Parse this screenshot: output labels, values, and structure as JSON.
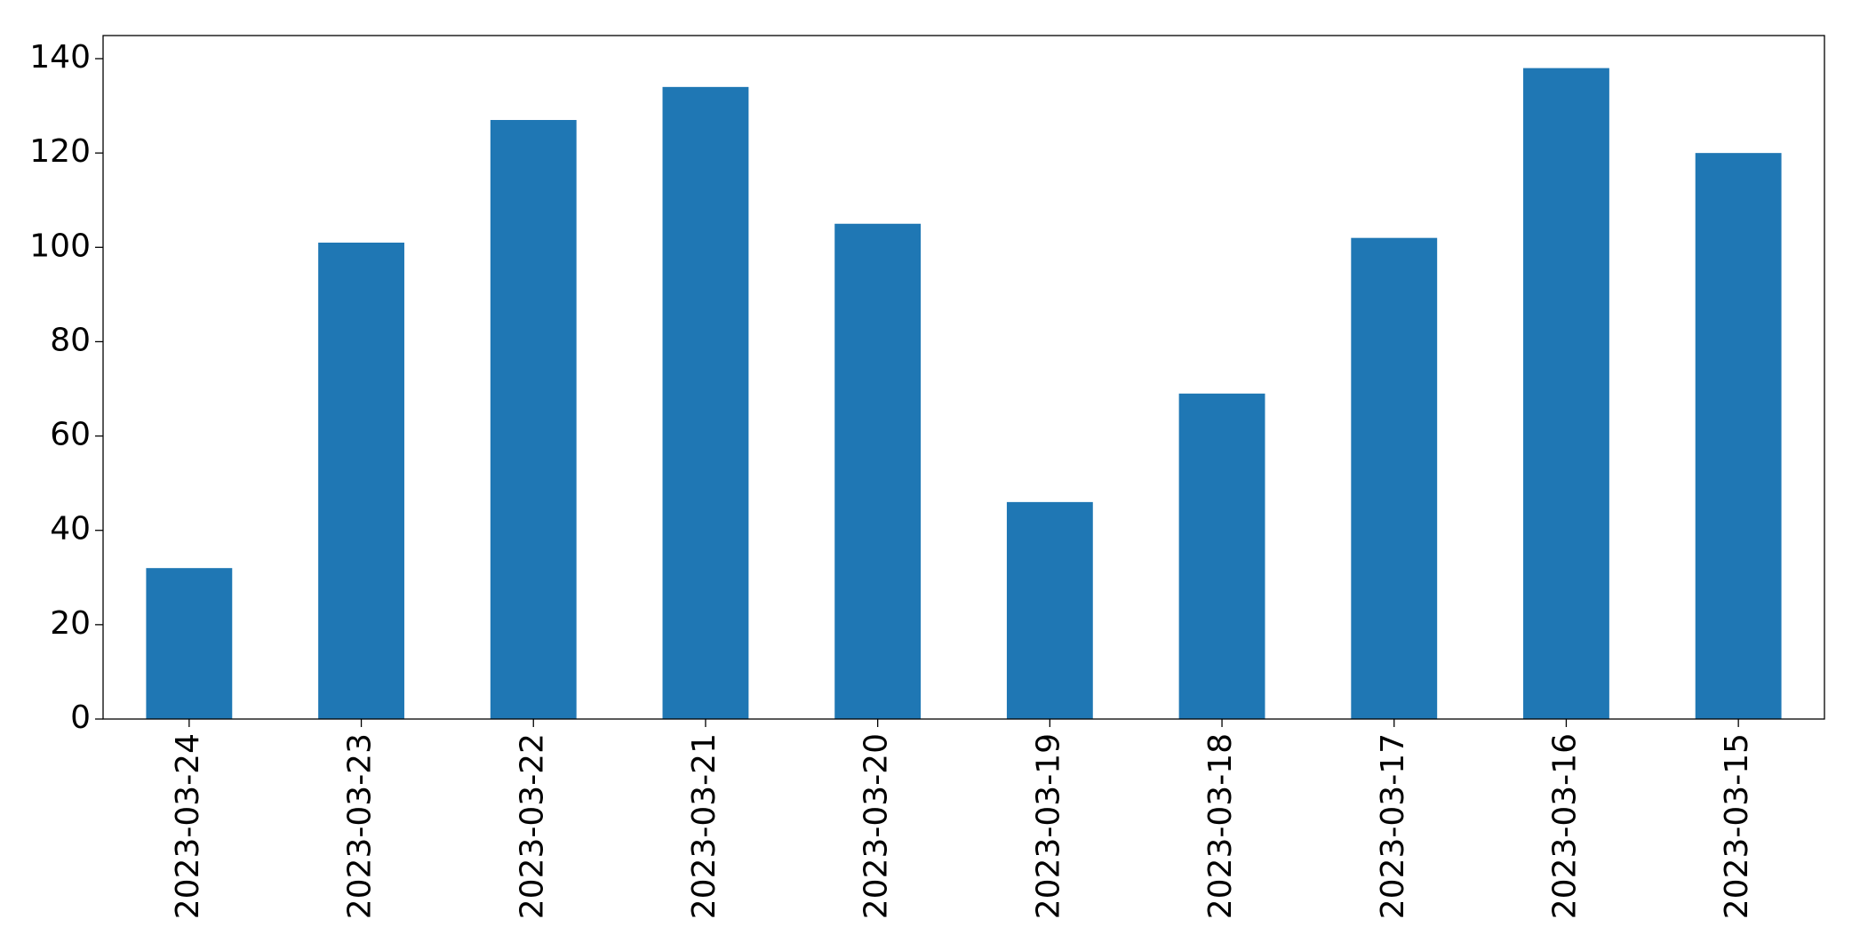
{
  "chart_data": {
    "type": "bar",
    "categories": [
      "2023-03-24",
      "2023-03-23",
      "2023-03-22",
      "2023-03-21",
      "2023-03-20",
      "2023-03-19",
      "2023-03-18",
      "2023-03-17",
      "2023-03-16",
      "2023-03-15"
    ],
    "values": [
      32,
      101,
      127,
      134,
      105,
      46,
      69,
      102,
      138,
      120
    ],
    "color": "#1f77b4",
    "ylim": [
      0,
      144.9
    ],
    "yticks": [
      0,
      20,
      40,
      60,
      80,
      100,
      120,
      140
    ],
    "grid": false
  }
}
